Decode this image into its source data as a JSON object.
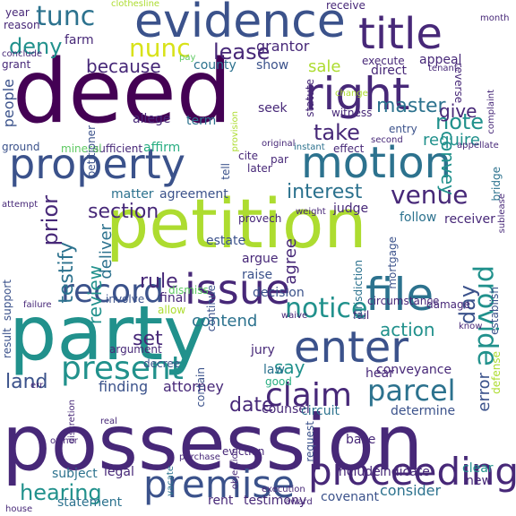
{
  "words": {
    "deed": "deed",
    "possession": "possession",
    "petition": "petition",
    "party": "party",
    "evidence": "evidence",
    "property": "property",
    "motion": "motion",
    "right": "right",
    "title": "title",
    "file": "file",
    "enter": "enter",
    "issue": "issue",
    "premise": "premise",
    "proceeding": "proceeding",
    "record": "record",
    "present": "present",
    "claim": "claim",
    "parcel": "parcel",
    "tunc": "tunc",
    "nunc": "nunc",
    "venue": "venue",
    "provide": "provide",
    "notice": "notice",
    "section": "section",
    "interest": "interest",
    "take": "take",
    "note": "note",
    "deny": "deny",
    "lease": "lease",
    "because": "because",
    "hearing": "hearing",
    "rule": "rule",
    "set": "set",
    "say": "say",
    "date": "date",
    "land": "land",
    "action": "action",
    "master": "master",
    "give": "give",
    "convey": "convey",
    "require": "require",
    "sale": "sale",
    "agree": "agree",
    "testify": "testify",
    "review": "review",
    "prior": "prior",
    "deliver": "deliver",
    "contend": "contend",
    "finding": "finding",
    "attorney": "attorney",
    "day": "day",
    "error": "error",
    "people": "people",
    "allege": "allege",
    "term": "term",
    "grantor": "grantor",
    "county": "county",
    "estate": "estate",
    "argue": "argue",
    "raise": "raise",
    "decision": "decision",
    "counsel": "counsel",
    "testimony": "testimony",
    "covenant": "covenant",
    "consider": "consider",
    "statement": "statement",
    "legal": "legal",
    "subject": "subject",
    "include": "include",
    "indicate": "indicate",
    "clear": "clear",
    "new": "new",
    "rent": "rent",
    "jury": "jury",
    "law": "law",
    "good": "good",
    "hear": "hear",
    "conveyance": "conveyance",
    "determine": "determine",
    "circuit": "circuit",
    "base": "base",
    "follow": "follow",
    "receiver": "receiver",
    "judge": "judge",
    "agreement": "agreement",
    "matter": "matter",
    "witness": "witness",
    "seek": "seek",
    "show": "show",
    "statute": "statute",
    "execute": "execute",
    "direct": "direct",
    "appeal": "appeal",
    "entry": "entry",
    "farm": "farm",
    "grant": "grant",
    "reason": "reason",
    "year": "year",
    "affirm": "affirm",
    "sufficient": "sufficient",
    "ground": "ground",
    "mineral": "mineral",
    "dismiss": "dismiss",
    "final": "final",
    "involve": "involve",
    "allow": "allow",
    "support": "support",
    "result": "result",
    "argument": "argument",
    "decree": "decree",
    "fail": "fail",
    "damage": "damage",
    "circumstance": "circumstance",
    "mortgage": "mortgage",
    "establish": "establish",
    "defense": "defense",
    "eviction": "eviction",
    "request": "request",
    "contain": "contain",
    "later": "later",
    "provech": "provech",
    "continue": "continue",
    "jurisdiction": "jurisdiction",
    "cite": "cite",
    "tell": "tell",
    "par": "par",
    "original": "original",
    "petitioner": "petitioner",
    "effect": "effect",
    "instant": "instant",
    "second": "second",
    "reverse": "reverse",
    "change": "change",
    "receive": "receive",
    "provision": "provision",
    "bridge": "bridge",
    "sublease": "sublease",
    "attempt": "attempt",
    "failure": "failure",
    "err": "err",
    "discretion": "discretion",
    "owner": "owner",
    "real": "real",
    "house": "house",
    "clothesline": "clothesline",
    "month": "month",
    "conclude": "conclude",
    "pay": "pay",
    "objection": "objection",
    "purchase": "purchase",
    "vacate": "vacate",
    "award": "award",
    "execution": "execution",
    "tenant": "tenant",
    "complaint": "complaint",
    "weight": "weight",
    "appellate": "appellate",
    "waive": "waive",
    "know": "know"
  },
  "palette": [
    "#440154",
    "#472878",
    "#3b528b",
    "#2c728e",
    "#21918c",
    "#27ad81",
    "#5ec962",
    "#addc30",
    "#d8e219"
  ]
}
